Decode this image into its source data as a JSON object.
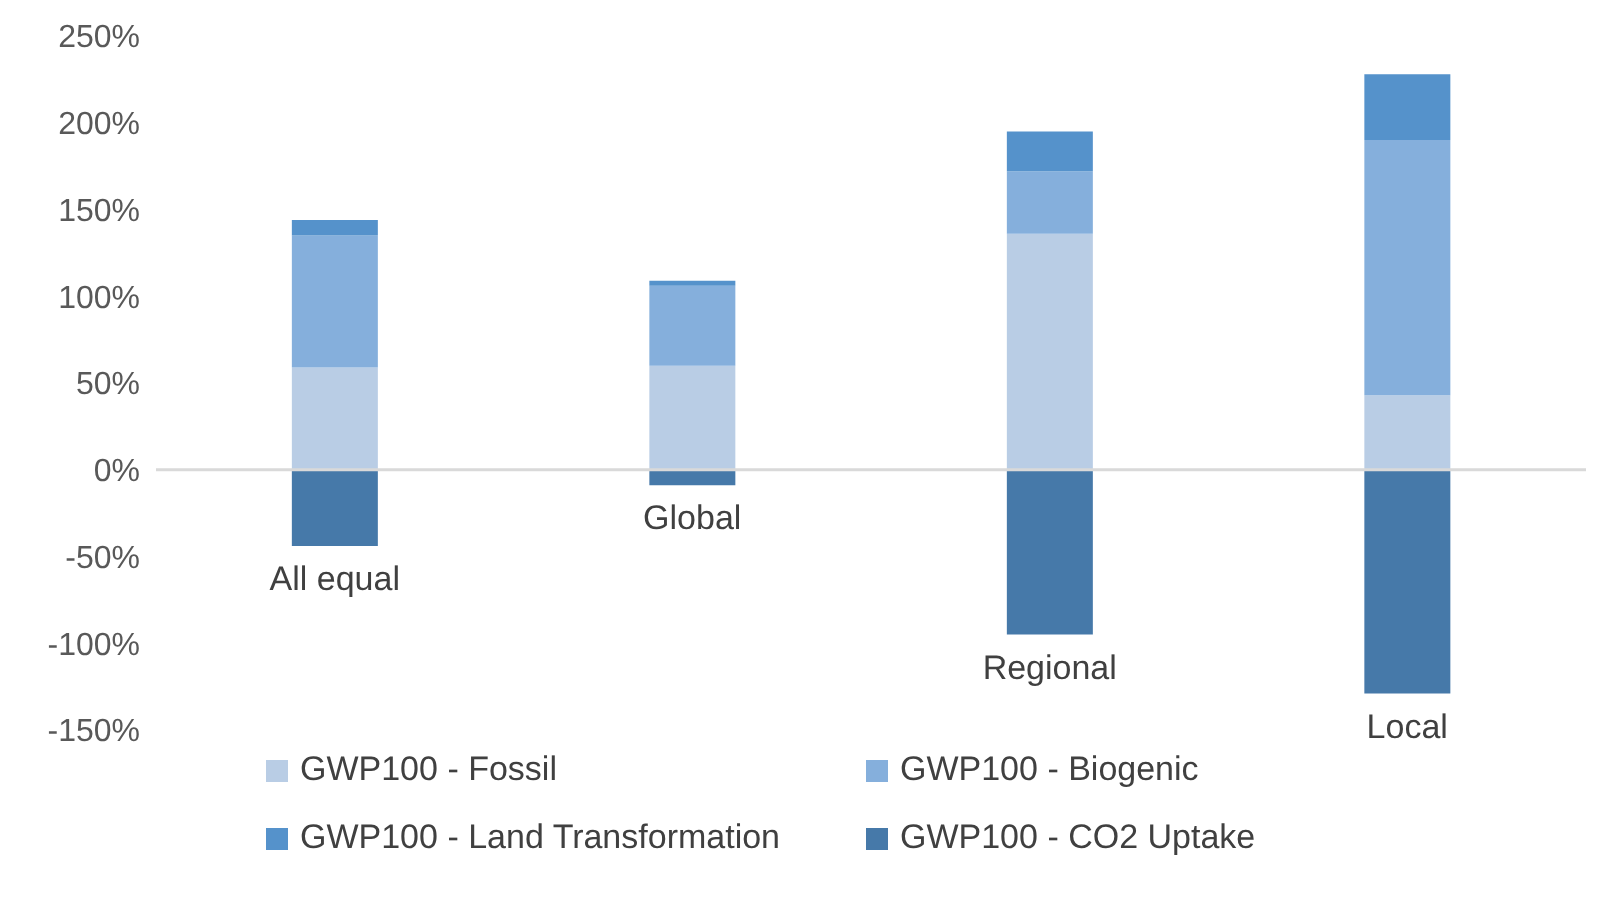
{
  "chart_data": {
    "type": "bar",
    "stacked": true,
    "categories": [
      "All equal",
      "Global",
      "Regional",
      "Local"
    ],
    "series": [
      {
        "name": "GWP100 - Fossil",
        "color": "#b9cde5",
        "values": [
          59,
          60,
          136,
          43
        ]
      },
      {
        "name": "GWP100 - Biogenic",
        "color": "#85afdc",
        "values": [
          76,
          46,
          36,
          147
        ]
      },
      {
        "name": "GWP100 - Land Transformation",
        "color": "#5592cb",
        "values": [
          9,
          3,
          23,
          38
        ]
      },
      {
        "name": "GWP100 - CO2 Uptake",
        "color": "#4679a9",
        "values": [
          -44,
          -9,
          -95,
          -129
        ]
      }
    ],
    "ylim": [
      -150,
      250
    ],
    "yticks": [
      {
        "value": -150,
        "label": "-150%"
      },
      {
        "value": -100,
        "label": "-100%"
      },
      {
        "value": -50,
        "label": "-50%"
      },
      {
        "value": 0,
        "label": "0%"
      },
      {
        "value": 50,
        "label": "50%"
      },
      {
        "value": 100,
        "label": "100%"
      },
      {
        "value": 150,
        "label": "150%"
      },
      {
        "value": 200,
        "label": "200%"
      },
      {
        "value": 250,
        "label": "250%"
      }
    ],
    "ref_lines": [
      {
        "axis": "y",
        "value": 0,
        "color": "#d9d9d9"
      }
    ],
    "legend": "bottom"
  }
}
